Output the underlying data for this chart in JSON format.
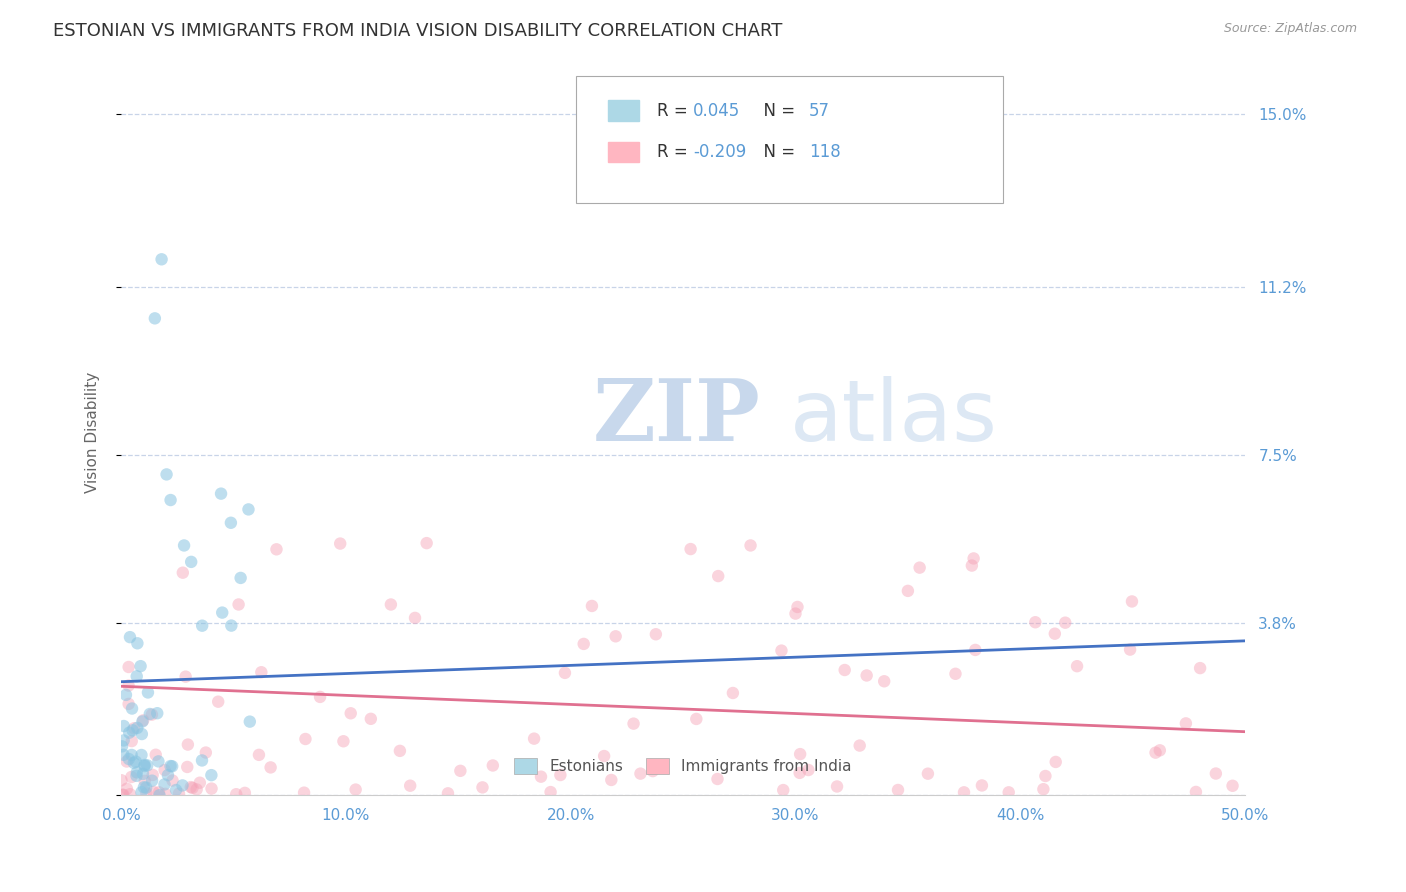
{
  "title": "ESTONIAN VS IMMIGRANTS FROM INDIA VISION DISABILITY CORRELATION CHART",
  "source_text": "Source: ZipAtlas.com",
  "ylabel": "Vision Disability",
  "xlim": [
    0.0,
    0.5
  ],
  "ylim": [
    0.0,
    0.16
  ],
  "yticks": [
    0.0,
    0.038,
    0.075,
    0.112,
    0.15
  ],
  "ytick_labels": [
    "",
    "3.8%",
    "7.5%",
    "11.2%",
    "15.0%"
  ],
  "xticks": [
    0.0,
    0.1,
    0.2,
    0.3,
    0.4,
    0.5
  ],
  "xtick_labels": [
    "0.0%",
    "10.0%",
    "20.0%",
    "30.0%",
    "40.0%",
    "50.0%"
  ],
  "tick_color": "#5b9bd5",
  "background_color": "#ffffff",
  "watermark_zip": "ZIP",
  "watermark_atlas": "atlas",
  "watermark_color": "#c8d8ec",
  "series": [
    {
      "name": "Estonians",
      "scatter_color": "#89c4e1",
      "scatter_alpha": 0.55,
      "scatter_size": 80,
      "trend_color": "#4472c4",
      "trend_style": "-",
      "trend_lw": 2.0,
      "y_start_trend": 0.025,
      "y_end_trend": 0.034,
      "legend_color": "#add8e6",
      "R_label": "R =  0.045",
      "N_label": "N =  57"
    },
    {
      "name": "Immigrants from India",
      "scatter_color": "#f4a0b5",
      "scatter_alpha": 0.45,
      "scatter_size": 80,
      "trend_color": "#e07090",
      "trend_style": "-",
      "trend_lw": 2.0,
      "y_start_trend": 0.024,
      "y_end_trend": 0.014,
      "legend_color": "#ffb6c1",
      "R_label": "R = -0.209",
      "N_label": "N = 118"
    }
  ],
  "grid_color": "#c8d4e8",
  "grid_style": "--",
  "title_fontsize": 13,
  "axis_label_fontsize": 11,
  "tick_fontsize": 11,
  "label_color": "#5b9bd5",
  "legend_R_color": "#333333",
  "legend_N_color": "#5b9bd5"
}
